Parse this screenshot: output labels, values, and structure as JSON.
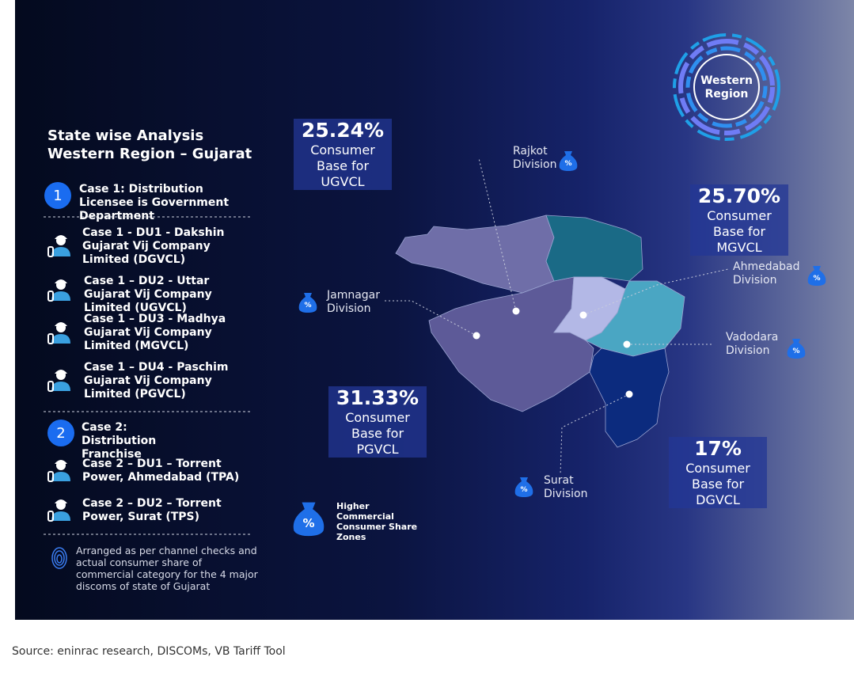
{
  "title": "State wise Analysis Western Region – Gujarat",
  "badge": "Western Region",
  "cases": [
    {
      "number": "1",
      "label": "Case 1: Distribution Licensee is Government Department",
      "items": [
        "Case 1 - DU1 - Dakshin Gujarat Vij Company Limited (DGVCL)",
        "Case 1 – DU2 - Uttar Gujarat Vij Company Limited (UGVCL)",
        "Case 1 – DU3 - Madhya Gujarat Vij Company Limited (MGVCL)",
        "Case 1 – DU4 - Paschim Gujarat Vij Company Limited (PGVCL)"
      ]
    },
    {
      "number": "2",
      "label": "Case 2: Distribution Franchise",
      "items": [
        "Case 2 – DU1 – Torrent Power, Ahmedabad (TPA)",
        "Case 2 – DU2 – Torrent Power, Surat (TPS)"
      ]
    }
  ],
  "note": "Arranged as per channel checks and actual consumer share of commercial category for the 4 major discoms of state of Gujarat",
  "consumer_bases": [
    {
      "percent": "25.24%",
      "label": "Consumer Base for UGVCL"
    },
    {
      "percent": "25.70%",
      "label": "Consumer Base for MGVCL"
    },
    {
      "percent": "31.33%",
      "label": "Consumer Base for PGVCL"
    },
    {
      "percent": "17%",
      "label": "Consumer Base for DGVCL"
    }
  ],
  "divisions": [
    "Rajkot Division",
    "Ahmedabad Division",
    "Jamnagar Division",
    "Vadodara Division",
    "Surat Division"
  ],
  "icon_symbol": "%",
  "legend": "Higher Commercial Consumer Share Zones",
  "source": "Source: eninrac research, DISCOMs, VB Tariff Tool"
}
